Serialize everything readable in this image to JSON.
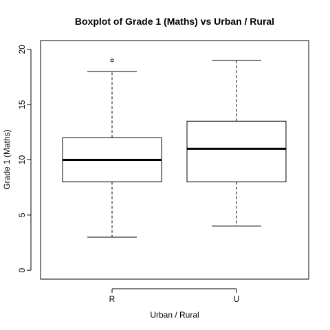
{
  "chart_data": {
    "type": "boxplot",
    "title": "Boxplot of Grade 1 (Maths)  vs  Urban / Rural",
    "xlabel": "Urban / Rural",
    "ylabel": "Grade 1 (Maths)",
    "ylim": [
      -0.8,
      20.8
    ],
    "yticks": [
      0,
      5,
      10,
      15,
      20
    ],
    "categories": [
      "R",
      "U"
    ],
    "boxes": [
      {
        "name": "R",
        "whisker_low": 3,
        "q1": 8,
        "median": 10,
        "q3": 12,
        "whisker_high": 18,
        "outliers": [
          19
        ]
      },
      {
        "name": "U",
        "whisker_low": 4,
        "q1": 8,
        "median": 11,
        "q3": 13.5,
        "whisker_high": 19,
        "outliers": []
      }
    ],
    "grid": false,
    "legend": "none"
  }
}
